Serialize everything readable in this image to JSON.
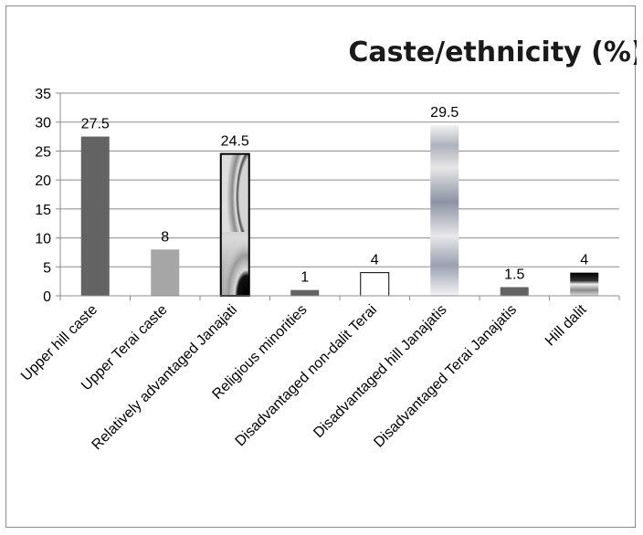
{
  "chart_data": {
    "type": "bar",
    "title": "Caste/ethnicity (%)",
    "categories": [
      "Upper hill caste",
      "Upper Terai caste",
      "Relatively advantaged Janajati",
      "Religious minorities",
      "Disadvantaged non-dalit Terai",
      "Disadvantaged hill Janajatis",
      "Disadvantaged Terai Janajatis",
      "Hill dalit"
    ],
    "values": [
      27.5,
      8,
      24.5,
      1,
      4,
      29.5,
      1.5,
      4
    ],
    "data_labels": [
      "27.5",
      "8",
      "24.5",
      "1",
      "4",
      "29.5",
      "1.5",
      "4"
    ],
    "ylim": [
      0,
      35
    ],
    "yticks": [
      0,
      5,
      10,
      15,
      20,
      25,
      30,
      35
    ],
    "grid": true,
    "legend": "none",
    "bar_styles": [
      "solid-dark-gray",
      "solid-light-gray",
      "gray-swirl-with-black-border",
      "solid-dark-gray",
      "white-with-black-border",
      "gray-blue-horizontal-gradient",
      "solid-dark-gray",
      "black-gray-horizontal-gradient"
    ],
    "colors": {
      "dark_gray": "#636363",
      "light_gray": "#a6a6a6",
      "gridline": "#8c8c8c",
      "axis": "#8c8c8c"
    }
  }
}
